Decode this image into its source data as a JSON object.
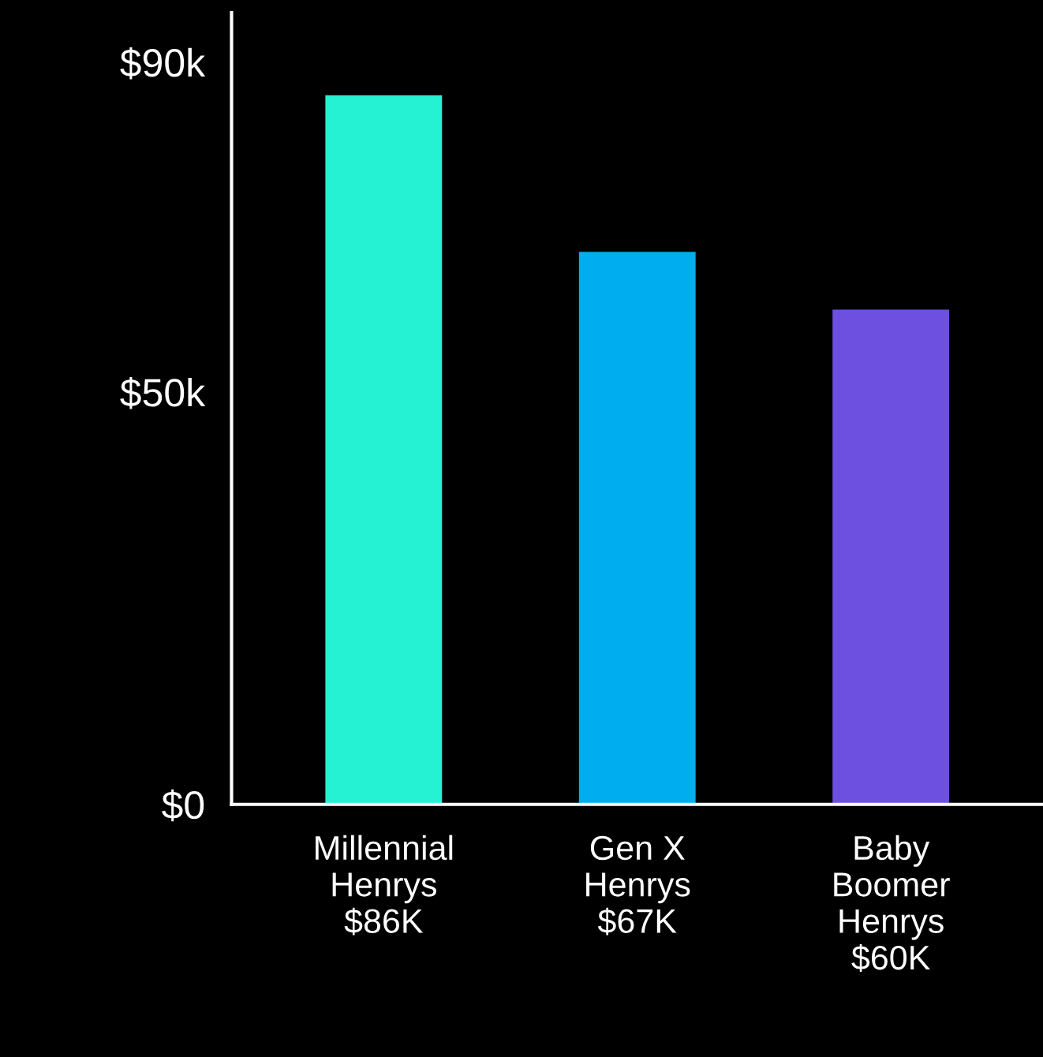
{
  "chart_data": {
    "type": "bar",
    "categories": [
      "Millennial\nHenrys\n$86K",
      "Gen X\nHenrys\n$67K",
      "Baby\nBoomer\nHenrys\n$60K"
    ],
    "values": [
      86,
      67,
      60
    ],
    "colors": [
      "#25f2d2",
      "#00adee",
      "#6e50e0"
    ],
    "ylim": [
      0,
      96
    ],
    "yticks": [
      {
        "value": 0,
        "label": "$0"
      },
      {
        "value": 50,
        "label": "$50k"
      },
      {
        "value": 90,
        "label": "$90k"
      }
    ]
  }
}
